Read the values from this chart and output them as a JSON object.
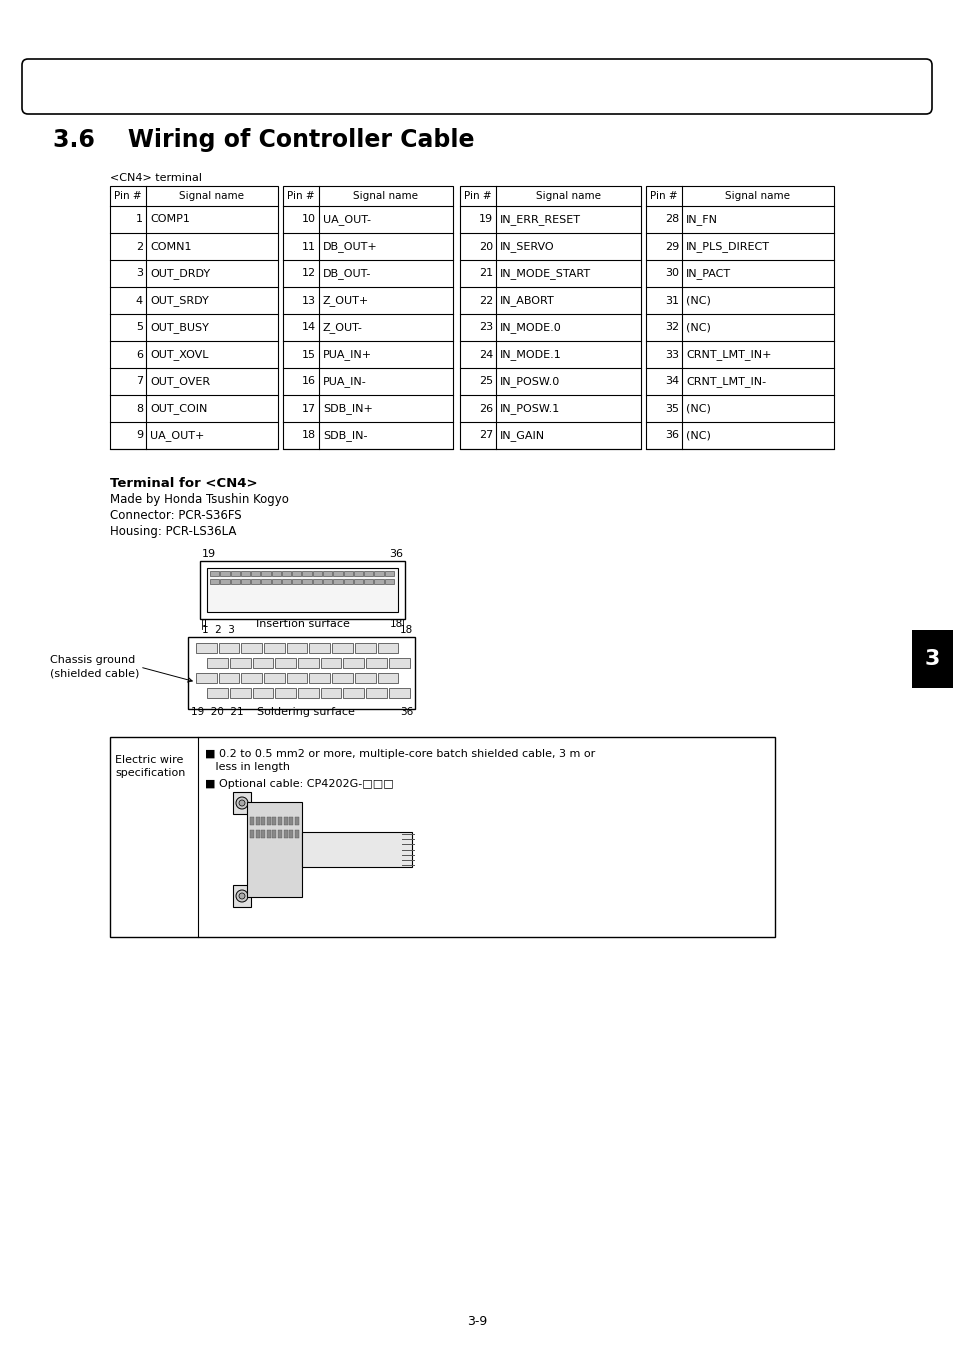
{
  "title": "3.6    Wiring of Controller Cable",
  "section_num": "3",
  "page_num": "3-9",
  "cn4_label": "<CN4> terminal",
  "table_col1": [
    [
      1,
      "COMP1"
    ],
    [
      2,
      "COMN1"
    ],
    [
      3,
      "OUT_DRDY"
    ],
    [
      4,
      "OUT_SRDY"
    ],
    [
      5,
      "OUT_BUSY"
    ],
    [
      6,
      "OUT_XOVL"
    ],
    [
      7,
      "OUT_OVER"
    ],
    [
      8,
      "OUT_COIN"
    ],
    [
      9,
      "UA_OUT+"
    ]
  ],
  "table_col2": [
    [
      10,
      "UA_OUT-"
    ],
    [
      11,
      "DB_OUT+"
    ],
    [
      12,
      "DB_OUT-"
    ],
    [
      13,
      "Z_OUT+"
    ],
    [
      14,
      "Z_OUT-"
    ],
    [
      15,
      "PUA_IN+"
    ],
    [
      16,
      "PUA_IN-"
    ],
    [
      17,
      "SDB_IN+"
    ],
    [
      18,
      "SDB_IN-"
    ]
  ],
  "table_col3": [
    [
      19,
      "IN_ERR_RESET"
    ],
    [
      20,
      "IN_SERVO"
    ],
    [
      21,
      "IN_MODE_START"
    ],
    [
      22,
      "IN_ABORT"
    ],
    [
      23,
      "IN_MODE.0"
    ],
    [
      24,
      "IN_MODE.1"
    ],
    [
      25,
      "IN_POSW.0"
    ],
    [
      26,
      "IN_POSW.1"
    ],
    [
      27,
      "IN_GAIN"
    ]
  ],
  "table_col4": [
    [
      28,
      "IN_FN"
    ],
    [
      29,
      "IN_PLS_DIRECT"
    ],
    [
      30,
      "IN_PACT"
    ],
    [
      31,
      "(NC)"
    ],
    [
      32,
      "(NC)"
    ],
    [
      33,
      "CRNT_LMT_IN+"
    ],
    [
      34,
      "CRNT_LMT_IN-"
    ],
    [
      35,
      "(NC)"
    ],
    [
      36,
      "(NC)"
    ]
  ],
  "terminal_lines": [
    [
      "Terminal for <CN4>",
      true
    ],
    [
      "Made by Honda Tsushin Kogyo",
      false
    ],
    [
      "Connector: PCR-S36FS",
      false
    ],
    [
      "Housing: PCR-LS36LA",
      false
    ]
  ],
  "spec_label": "Electric wire\nspecification",
  "spec_text1": "■ 0.2 to 0.5 mm2 or more, multiple-core batch shielded cable, 3 m or",
  "spec_text1b": "   less in length",
  "spec_text2": "■ Optional cable: CP4202G-□□□",
  "bg_color": "#ffffff",
  "text_color": "#000000"
}
